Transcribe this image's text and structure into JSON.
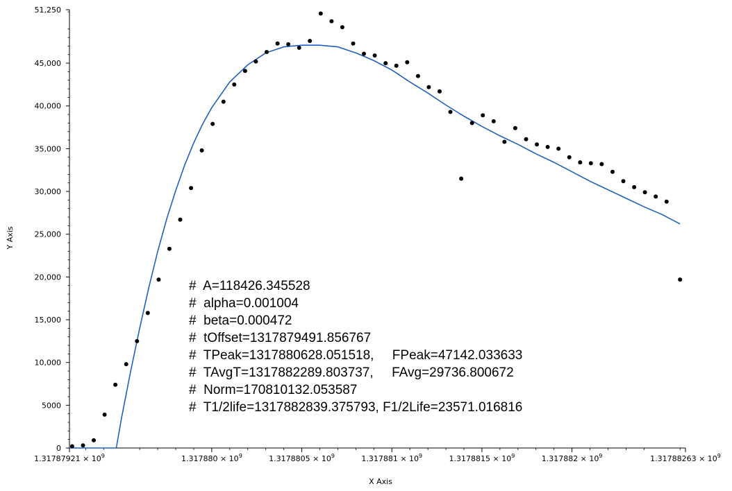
{
  "chart_data": {
    "type": "scatter",
    "xlabel": "X Axis",
    "ylabel": "Y Axis",
    "xlim": [
      1317879210,
      1317882630
    ],
    "ylim": [
      0,
      51250
    ],
    "x_ticks": [
      {
        "value": 1317879210,
        "label": "1.31787921 × 10"
      },
      {
        "value": 1317880000,
        "label": "1.317880 × 10"
      },
      {
        "value": 1317880500,
        "label": "1.3178805 × 10"
      },
      {
        "value": 1317881000,
        "label": "1.317881 × 10"
      },
      {
        "value": 1317881500,
        "label": "1.3178815 × 10"
      },
      {
        "value": 1317882000,
        "label": "1.317882 × 10"
      },
      {
        "value": 1317882630,
        "label": "1.31788263 × 10"
      }
    ],
    "x_tick_exponent": "9",
    "y_ticks": [
      {
        "value": 0,
        "label": "0"
      },
      {
        "value": 5000,
        "label": "5000"
      },
      {
        "value": 10000,
        "label": "10,000"
      },
      {
        "value": 15000,
        "label": "15,000"
      },
      {
        "value": 20000,
        "label": "20,000"
      },
      {
        "value": 25000,
        "label": "25,000"
      },
      {
        "value": 30000,
        "label": "30,000"
      },
      {
        "value": 35000,
        "label": "35,000"
      },
      {
        "value": 40000,
        "label": "40,000"
      },
      {
        "value": 45000,
        "label": "45,000"
      },
      {
        "value": 51250,
        "label": "51,250"
      }
    ],
    "series": [
      {
        "color": "#000000",
        "style": "points",
        "points": [
          [
            1317879225,
            200
          ],
          [
            1317879285,
            300
          ],
          [
            1317879345,
            900
          ],
          [
            1317879405,
            3900
          ],
          [
            1317879465,
            7400
          ],
          [
            1317879525,
            9800
          ],
          [
            1317879585,
            12500
          ],
          [
            1317879645,
            15800
          ],
          [
            1317879705,
            19700
          ],
          [
            1317879765,
            23300
          ],
          [
            1317879825,
            26700
          ],
          [
            1317879885,
            30400
          ],
          [
            1317879945,
            34800
          ],
          [
            1317880005,
            37900
          ],
          [
            1317880065,
            40500
          ],
          [
            1317880125,
            42500
          ],
          [
            1317880185,
            44100
          ],
          [
            1317880245,
            45200
          ],
          [
            1317880305,
            46300
          ],
          [
            1317880365,
            47300
          ],
          [
            1317880425,
            47200
          ],
          [
            1317880485,
            46800
          ],
          [
            1317880545,
            47600
          ],
          [
            1317880605,
            50800
          ],
          [
            1317880665,
            49900
          ],
          [
            1317880725,
            49200
          ],
          [
            1317880785,
            47300
          ],
          [
            1317880845,
            46100
          ],
          [
            1317880905,
            45900
          ],
          [
            1317880965,
            45000
          ],
          [
            1317881025,
            44700
          ],
          [
            1317881085,
            45100
          ],
          [
            1317881145,
            43500
          ],
          [
            1317881205,
            42200
          ],
          [
            1317881265,
            41700
          ],
          [
            1317881325,
            39300
          ],
          [
            1317881385,
            31500
          ],
          [
            1317881445,
            38000
          ],
          [
            1317881505,
            38900
          ],
          [
            1317881565,
            38200
          ],
          [
            1317881625,
            35800
          ],
          [
            1317881685,
            37400
          ],
          [
            1317881745,
            36100
          ],
          [
            1317881805,
            35500
          ],
          [
            1317881865,
            35200
          ],
          [
            1317881925,
            35000
          ],
          [
            1317881985,
            34000
          ],
          [
            1317882045,
            33400
          ],
          [
            1317882105,
            33300
          ],
          [
            1317882165,
            33200
          ],
          [
            1317882225,
            32300
          ],
          [
            1317882285,
            31200
          ],
          [
            1317882345,
            30500
          ],
          [
            1317882405,
            29900
          ],
          [
            1317882465,
            29400
          ],
          [
            1317882525,
            28800
          ],
          [
            1317882600,
            19700
          ]
        ]
      },
      {
        "color": "#1f5fbf",
        "style": "line",
        "points": [
          [
            1317879210,
            0
          ],
          [
            1317879470,
            0
          ],
          [
            1317879500,
            3600
          ],
          [
            1317879550,
            9000
          ],
          [
            1317879600,
            14000
          ],
          [
            1317879650,
            18700
          ],
          [
            1317879700,
            23000
          ],
          [
            1317879750,
            26800
          ],
          [
            1317879800,
            30100
          ],
          [
            1317879850,
            33100
          ],
          [
            1317879900,
            35700
          ],
          [
            1317879950,
            37900
          ],
          [
            1317880000,
            39800
          ],
          [
            1317880100,
            42800
          ],
          [
            1317880200,
            44800
          ],
          [
            1317880300,
            46200
          ],
          [
            1317880400,
            46900
          ],
          [
            1317880500,
            47100
          ],
          [
            1317880600,
            47100
          ],
          [
            1317880700,
            46900
          ],
          [
            1317880800,
            46200
          ],
          [
            1317880900,
            45300
          ],
          [
            1317881000,
            44200
          ],
          [
            1317881100,
            42800
          ],
          [
            1317881200,
            41500
          ],
          [
            1317881300,
            40100
          ],
          [
            1317881400,
            38800
          ],
          [
            1317881500,
            37600
          ],
          [
            1317881600,
            36500
          ],
          [
            1317881700,
            35500
          ],
          [
            1317881800,
            34400
          ],
          [
            1317881900,
            33400
          ],
          [
            1317882000,
            32300
          ],
          [
            1317882100,
            31200
          ],
          [
            1317882200,
            30200
          ],
          [
            1317882300,
            29200
          ],
          [
            1317882400,
            28200
          ],
          [
            1317882500,
            27300
          ],
          [
            1317882600,
            26200
          ]
        ]
      }
    ],
    "annotations": [
      "#  A=118426.345528",
      "#  alpha=0.001004",
      "#  beta=0.000472",
      "#  tOffset=1317879491.856767",
      "#  TPeak=1317880628.051518,     FPeak=47142.033633",
      "#  TAvgT=1317882289.803737,     FAvg=29736.800672",
      "#  Norm=170810132.053587",
      "#  T1/2life=1317882839.375793, F1/2Life=23571.016816"
    ]
  }
}
